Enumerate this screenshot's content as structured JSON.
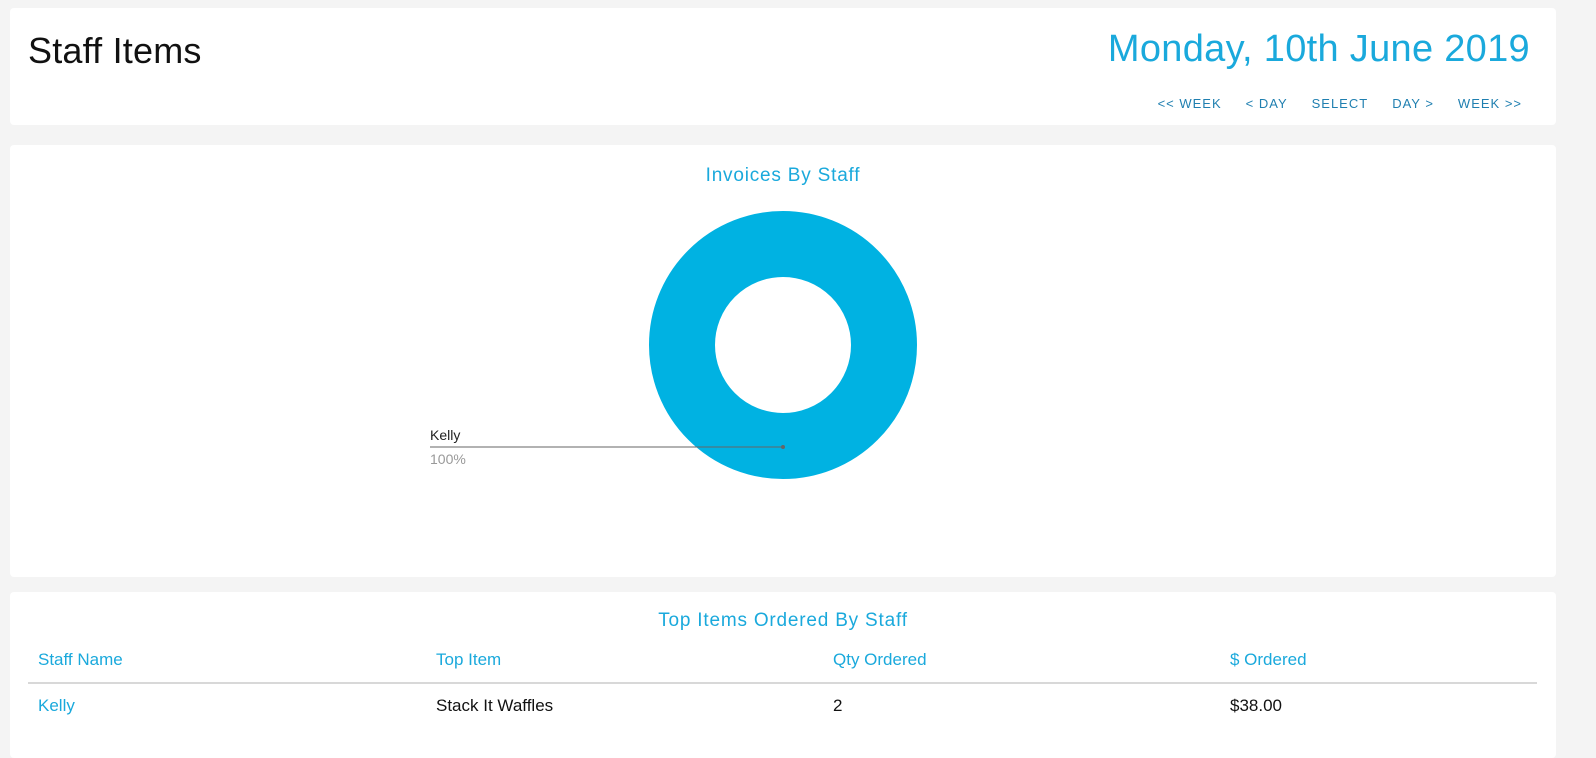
{
  "header": {
    "title": "Staff Items",
    "date": "Monday, 10th June 2019",
    "nav": [
      "<< WEEK",
      "< DAY",
      "SELECT",
      "DAY >",
      "WEEK >>"
    ]
  },
  "chart_card": {
    "title": "Invoices By Staff"
  },
  "chart_data": {
    "type": "pie",
    "donut": true,
    "title": "Invoices By Staff",
    "slices": [
      {
        "label": "Kelly",
        "value": 100,
        "percent_label": "100%",
        "color": "#00b2e2"
      }
    ]
  },
  "table_card": {
    "title": "Top Items Ordered By Staff",
    "columns": [
      "Staff Name",
      "Top Item",
      "Qty Ordered",
      "$ Ordered"
    ],
    "rows": [
      {
        "staff": "Kelly",
        "item": "Stack It Waffles",
        "qty": "2",
        "amount": "$38.00"
      }
    ]
  },
  "colors": {
    "accent": "#1aa9dc",
    "slice": "#00b2e2",
    "background": "#f4f4f4"
  }
}
